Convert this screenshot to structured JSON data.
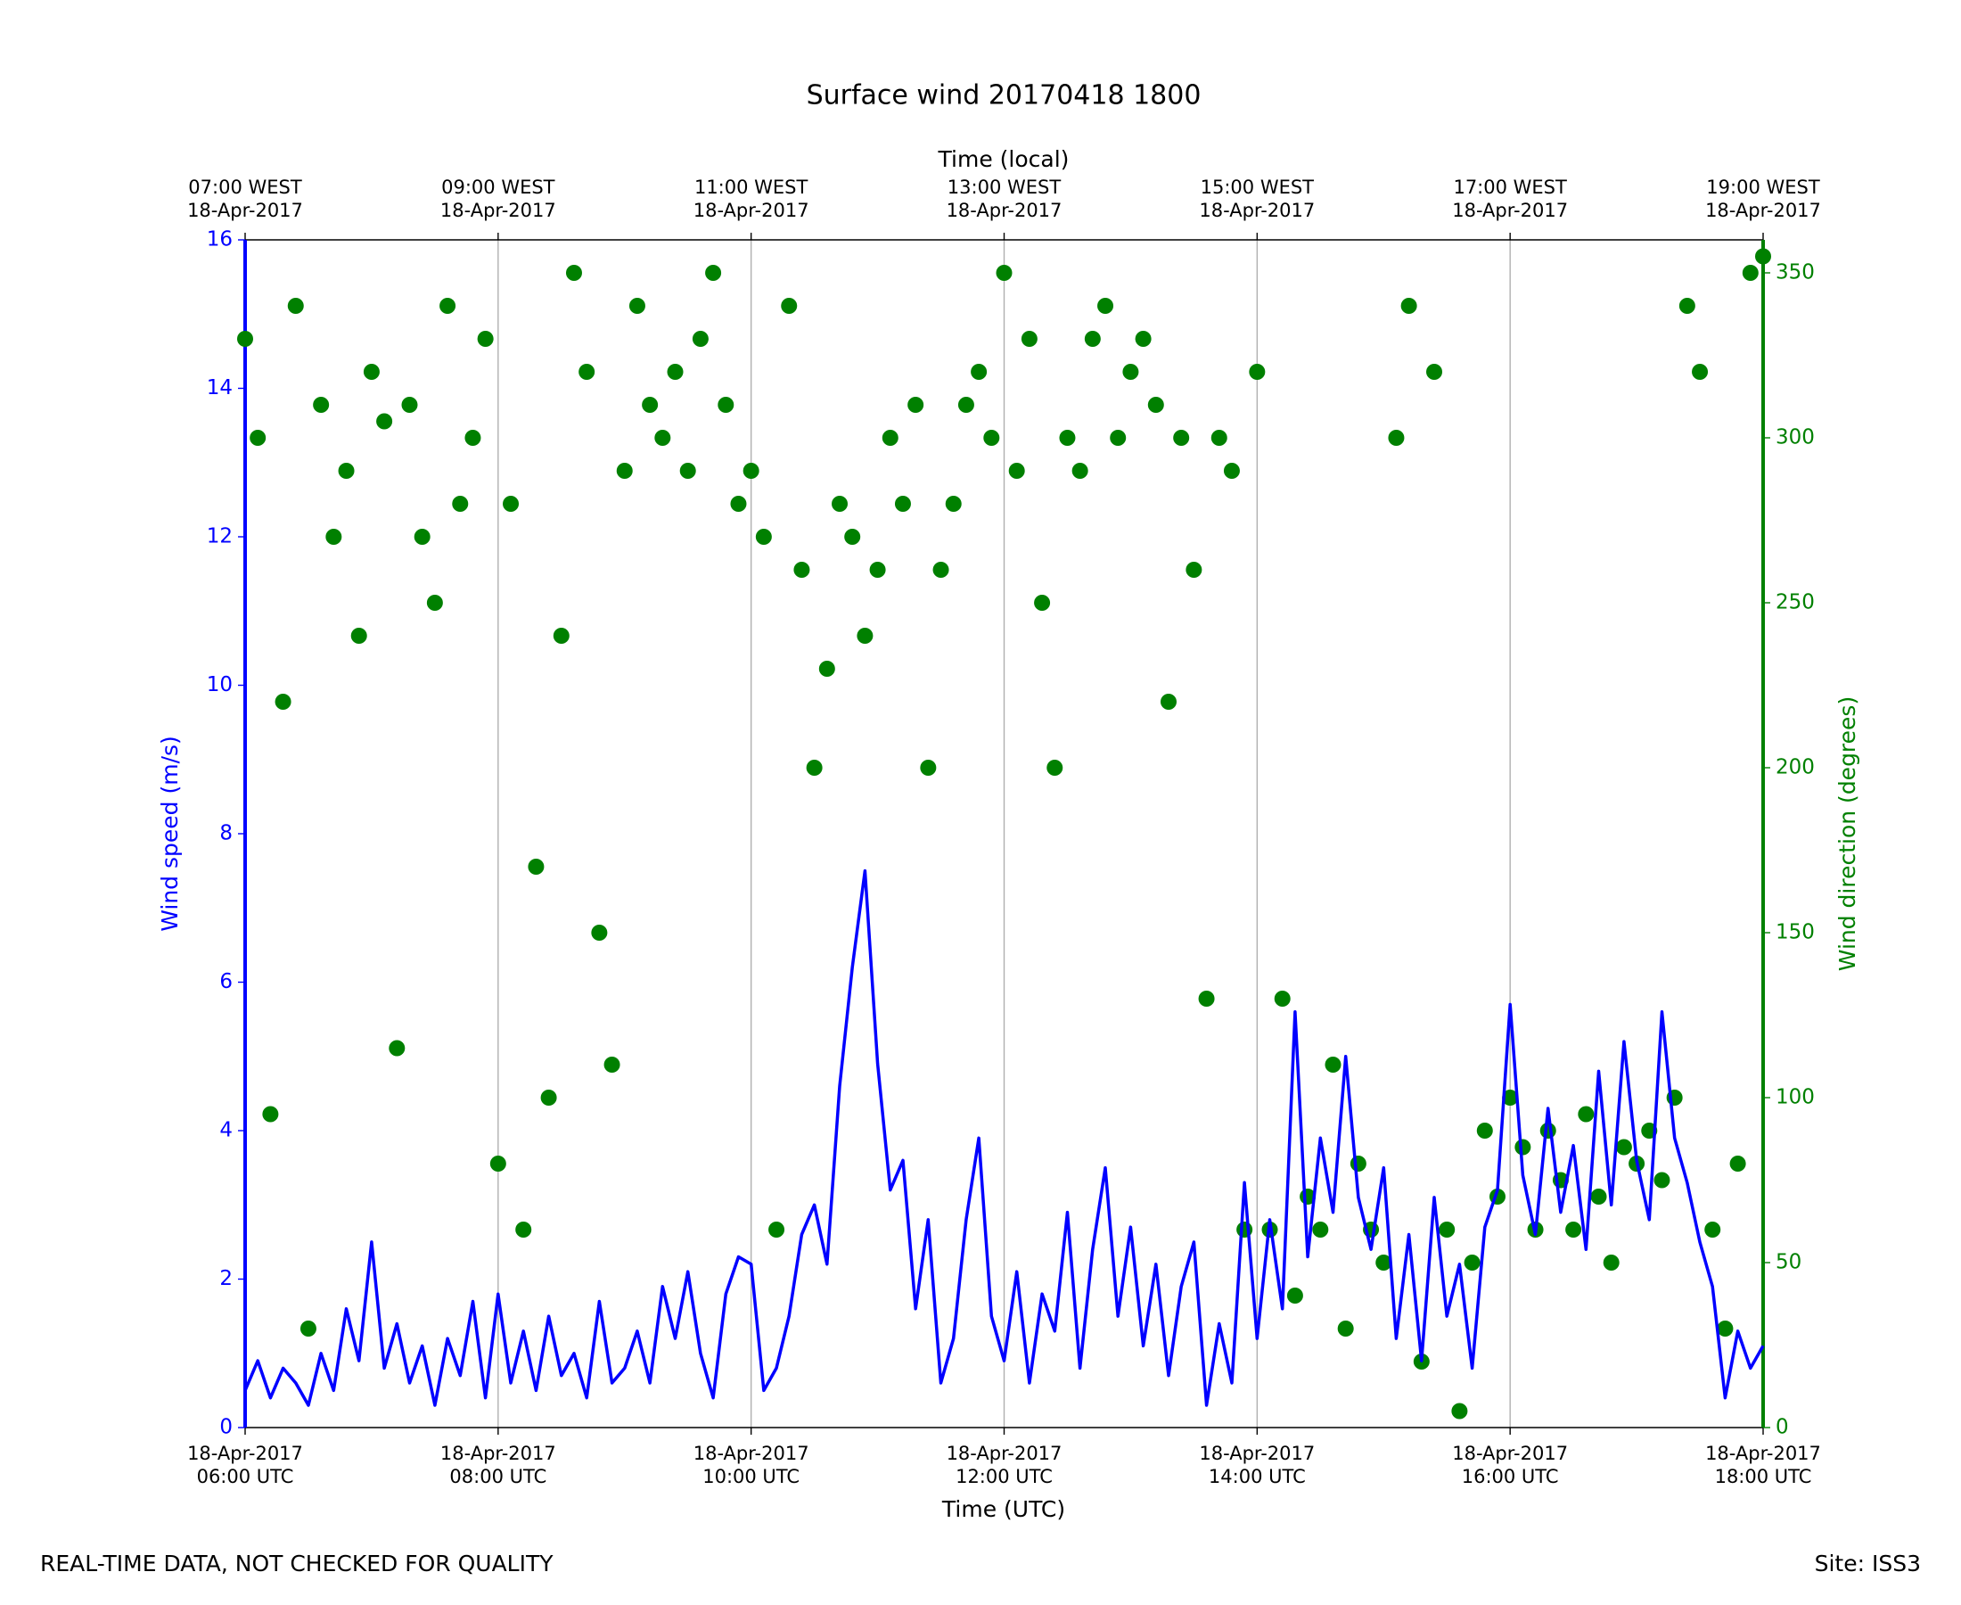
{
  "chart_data": {
    "type": "line",
    "title": "Surface wind 20170418 1800",
    "top_xlabel": "Time (local)",
    "xlabel": "Time (UTC)",
    "ylabel": "Wind speed (m/s)",
    "y2label": "Wind direction (degrees)",
    "footer_left": "REAL-TIME DATA, NOT CHECKED FOR QUALITY",
    "footer_right": "Site: ISS3",
    "grid": true,
    "xlim": [
      6,
      18
    ],
    "xticks": [
      {
        "value": 6,
        "label": "18-Apr-2017\n06:00 UTC"
      },
      {
        "value": 8,
        "label": "18-Apr-2017\n08:00 UTC"
      },
      {
        "value": 10,
        "label": "18-Apr-2017\n10:00 UTC"
      },
      {
        "value": 12,
        "label": "18-Apr-2017\n12:00 UTC"
      },
      {
        "value": 14,
        "label": "18-Apr-2017\n14:00 UTC"
      },
      {
        "value": 16,
        "label": "18-Apr-2017\n16:00 UTC"
      },
      {
        "value": 18,
        "label": "18-Apr-2017\n18:00 UTC"
      }
    ],
    "top_xticks": [
      {
        "value": 6,
        "label": "07:00 WEST\n18-Apr-2017"
      },
      {
        "value": 8,
        "label": "09:00 WEST\n18-Apr-2017"
      },
      {
        "value": 10,
        "label": "11:00 WEST\n18-Apr-2017"
      },
      {
        "value": 12,
        "label": "13:00 WEST\n18-Apr-2017"
      },
      {
        "value": 14,
        "label": "15:00 WEST\n18-Apr-2017"
      },
      {
        "value": 16,
        "label": "17:00 WEST\n18-Apr-2017"
      },
      {
        "value": 18,
        "label": "19:00 WEST\n18-Apr-2017"
      }
    ],
    "ylim": [
      0,
      16
    ],
    "yticks": [
      0,
      2,
      4,
      6,
      8,
      10,
      12,
      14,
      16
    ],
    "y2lim": [
      0,
      360
    ],
    "y2ticks": [
      0,
      50,
      100,
      150,
      200,
      250,
      300,
      350
    ],
    "ycolor": "#0000ff",
    "y2color": "#008000",
    "x": [
      6.0,
      6.1,
      6.2,
      6.3,
      6.4,
      6.5,
      6.6,
      6.7,
      6.8,
      6.9,
      7.0,
      7.1,
      7.2,
      7.3,
      7.4,
      7.5,
      7.6,
      7.7,
      7.8,
      7.9,
      8.0,
      8.1,
      8.2,
      8.3,
      8.4,
      8.5,
      8.6,
      8.7,
      8.8,
      8.9,
      9.0,
      9.1,
      9.2,
      9.3,
      9.4,
      9.5,
      9.6,
      9.7,
      9.8,
      9.9,
      10.0,
      10.1,
      10.2,
      10.3,
      10.4,
      10.5,
      10.6,
      10.7,
      10.8,
      10.9,
      11.0,
      11.1,
      11.2,
      11.3,
      11.4,
      11.5,
      11.6,
      11.7,
      11.8,
      11.9,
      12.0,
      12.1,
      12.2,
      12.3,
      12.4,
      12.5,
      12.6,
      12.7,
      12.8,
      12.9,
      13.0,
      13.1,
      13.2,
      13.3,
      13.4,
      13.5,
      13.6,
      13.7,
      13.8,
      13.9,
      14.0,
      14.1,
      14.2,
      14.3,
      14.4,
      14.5,
      14.6,
      14.7,
      14.8,
      14.9,
      15.0,
      15.1,
      15.2,
      15.3,
      15.4,
      15.5,
      15.6,
      15.7,
      15.8,
      15.9,
      16.0,
      16.1,
      16.2,
      16.3,
      16.4,
      16.5,
      16.6,
      16.7,
      16.8,
      16.9,
      17.0,
      17.1,
      17.2,
      17.3,
      17.4,
      17.5,
      17.6,
      17.7,
      17.8,
      17.9,
      18.0
    ],
    "series": [
      {
        "name": "Wind speed",
        "type": "line",
        "axis": "y",
        "color": "#0000ff",
        "values": [
          0.5,
          0.9,
          0.4,
          0.8,
          0.6,
          0.3,
          1.0,
          0.5,
          1.6,
          0.9,
          2.5,
          0.8,
          1.4,
          0.6,
          1.1,
          0.3,
          1.2,
          0.7,
          1.7,
          0.4,
          1.8,
          0.6,
          1.3,
          0.5,
          1.5,
          0.7,
          1.0,
          0.4,
          1.7,
          0.6,
          0.8,
          1.3,
          0.6,
          1.9,
          1.2,
          2.1,
          1.0,
          0.4,
          1.8,
          2.3,
          2.2,
          0.5,
          0.8,
          1.5,
          2.6,
          3.0,
          2.2,
          4.6,
          6.2,
          7.5,
          4.9,
          3.2,
          3.6,
          1.6,
          2.8,
          0.6,
          1.2,
          2.8,
          3.9,
          1.5,
          0.9,
          2.1,
          0.6,
          1.8,
          1.3,
          2.9,
          0.8,
          2.4,
          3.5,
          1.5,
          2.7,
          1.1,
          2.2,
          0.7,
          1.9,
          2.5,
          0.3,
          1.4,
          0.6,
          3.3,
          1.2,
          2.8,
          1.6,
          5.6,
          2.3,
          3.9,
          2.9,
          5.0,
          3.1,
          2.4,
          3.5,
          1.2,
          2.6,
          0.9,
          3.1,
          1.5,
          2.2,
          0.8,
          2.7,
          3.2,
          5.7,
          3.4,
          2.6,
          4.3,
          2.9,
          3.8,
          2.4,
          4.8,
          3.0,
          5.2,
          3.6,
          2.8,
          5.6,
          3.9,
          3.3,
          2.5,
          1.9,
          0.4,
          1.3,
          0.8,
          1.1
        ]
      },
      {
        "name": "Wind direction",
        "type": "scatter",
        "axis": "y2",
        "color": "#008000",
        "values": [
          330,
          300,
          95,
          220,
          340,
          30,
          310,
          270,
          290,
          240,
          320,
          305,
          115,
          310,
          270,
          250,
          340,
          280,
          300,
          330,
          80,
          280,
          60,
          170,
          100,
          240,
          350,
          320,
          150,
          110,
          290,
          340,
          310,
          300,
          320,
          290,
          330,
          350,
          310,
          280,
          290,
          270,
          60,
          340,
          260,
          200,
          230,
          280,
          270,
          240,
          260,
          300,
          280,
          310,
          200,
          260,
          280,
          310,
          320,
          300,
          350,
          290,
          330,
          250,
          200,
          300,
          290,
          330,
          340,
          300,
          320,
          330,
          310,
          220,
          300,
          260,
          130,
          300,
          290,
          60,
          320,
          60,
          130,
          40,
          70,
          60,
          110,
          30,
          80,
          60,
          50,
          300,
          340,
          20,
          320,
          60,
          5,
          50,
          90,
          70,
          100,
          85,
          60,
          90,
          75,
          60,
          95,
          70,
          50,
          85,
          80,
          90,
          75,
          100,
          340,
          320,
          60,
          30,
          80,
          350,
          355
        ]
      }
    ]
  }
}
